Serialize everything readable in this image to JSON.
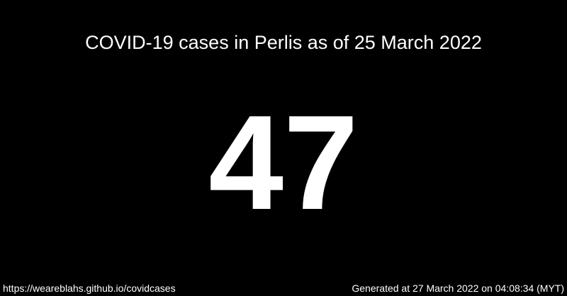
{
  "title": "COVID-19 cases in Perlis as of 25 March 2022",
  "case_count": "47",
  "footer": {
    "url": "https://weareblahs.github.io/covidcases",
    "generated": "Generated at 27 March 2022 on 04:08:34 (MYT)"
  },
  "colors": {
    "background": "#000000",
    "text": "#ffffff"
  }
}
